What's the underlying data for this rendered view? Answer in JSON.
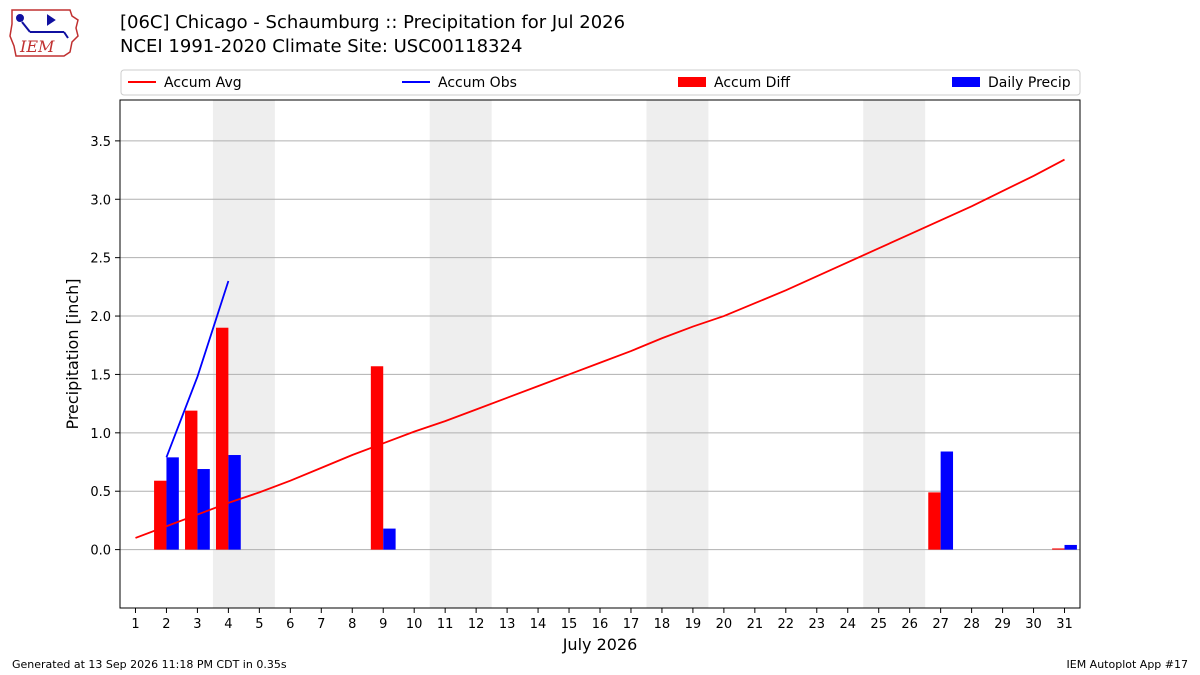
{
  "logo": {
    "text": "IEM",
    "colors": {
      "state_outline": "#c03030",
      "text": "#c03030",
      "symbols": "#1010a0"
    }
  },
  "title_line1": "[06C] Chicago - Schaumburg :: Precipitation for Jul 2026",
  "title_line2": "NCEI 1991-2020 Climate Site: USC00118324",
  "footer_left": "Generated at 13 Sep 2026 11:18 PM CDT in 0.35s",
  "footer_right": "IEM Autoplot App #17",
  "chart_data": {
    "type": "bar",
    "xlabel": "July 2026",
    "ylabel": "Precipitation [inch]",
    "xlim": [
      0.5,
      31.5
    ],
    "ylim": [
      -0.5,
      3.85
    ],
    "x_ticks": [
      1,
      2,
      3,
      4,
      5,
      6,
      7,
      8,
      9,
      10,
      11,
      12,
      13,
      14,
      15,
      16,
      17,
      18,
      19,
      20,
      21,
      22,
      23,
      24,
      25,
      26,
      27,
      28,
      29,
      30,
      31
    ],
    "y_ticks": [
      0.0,
      0.5,
      1.0,
      1.5,
      2.0,
      2.5,
      3.0,
      3.5
    ],
    "y_tick_labels": [
      "0.0",
      "0.5",
      "1.0",
      "1.5",
      "2.0",
      "2.5",
      "3.0",
      "3.5"
    ],
    "grid": "horizontal",
    "legend_position": "top",
    "weekend_shading": [
      [
        3.5,
        5.5
      ],
      [
        10.5,
        12.5
      ],
      [
        17.5,
        19.5
      ],
      [
        24.5,
        26.5
      ]
    ],
    "series": [
      {
        "name": "Accum Avg",
        "type": "line",
        "color": "#ff0000",
        "x": [
          1,
          2,
          3,
          4,
          5,
          6,
          7,
          8,
          9,
          10,
          11,
          12,
          13,
          14,
          15,
          16,
          17,
          18,
          19,
          20,
          21,
          22,
          23,
          24,
          25,
          26,
          27,
          28,
          29,
          30,
          31
        ],
        "values": [
          0.1,
          0.2,
          0.3,
          0.4,
          0.49,
          0.59,
          0.7,
          0.81,
          0.91,
          1.01,
          1.1,
          1.2,
          1.3,
          1.4,
          1.5,
          1.6,
          1.7,
          1.81,
          1.91,
          2.0,
          2.11,
          2.22,
          2.34,
          2.46,
          2.58,
          2.7,
          2.82,
          2.94,
          3.07,
          3.2,
          3.34
        ]
      },
      {
        "name": "Accum Obs",
        "type": "line",
        "color": "#0000ff",
        "x": [
          2,
          3,
          4
        ],
        "values": [
          0.79,
          1.48,
          2.3
        ]
      },
      {
        "name": "Accum Diff",
        "type": "bar",
        "color": "#ff0000",
        "offset": -0.2,
        "x": [
          2,
          3,
          4,
          9,
          27,
          31
        ],
        "values": [
          0.59,
          1.19,
          1.9,
          1.57,
          0.49,
          0.01
        ]
      },
      {
        "name": "Daily Precip",
        "type": "bar",
        "color": "#0000ff",
        "offset": 0.2,
        "x": [
          2,
          3,
          4,
          9,
          27,
          31
        ],
        "values": [
          0.79,
          0.69,
          0.81,
          0.18,
          0.84,
          0.04
        ]
      }
    ]
  }
}
